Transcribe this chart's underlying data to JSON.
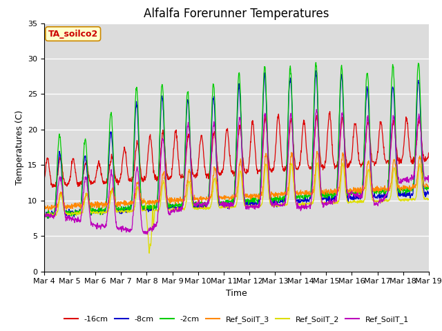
{
  "title": "Alfalfa Forerunner Temperatures",
  "xlabel": "Time",
  "ylabel": "Temperatures (C)",
  "ylim": [
    0,
    35
  ],
  "xlim": [
    0,
    15
  ],
  "annotation_text": "TA_soilco2",
  "annotation_color": "#cc0000",
  "annotation_bg": "#ffffcc",
  "annotation_border": "#cc8800",
  "lines": [
    {
      "label": "-16cm",
      "color": "#dd0000"
    },
    {
      "label": "-8cm",
      "color": "#0000cc"
    },
    {
      "label": "-2cm",
      "color": "#00cc00"
    },
    {
      "label": "Ref_SoilT_3",
      "color": "#ff8800"
    },
    {
      "label": "Ref_SoilT_2",
      "color": "#dddd00"
    },
    {
      "label": "Ref_SoilT_1",
      "color": "#bb00bb"
    }
  ],
  "xtick_labels": [
    "Mar 4",
    "Mar 5",
    "Mar 6",
    "Mar 7",
    "Mar 8",
    "Mar 9",
    "Mar 10",
    "Mar 11",
    "Mar 12",
    "Mar 13",
    "Mar 14",
    "Mar 15",
    "Mar 16",
    "Mar 17",
    "Mar 18",
    "Mar 19"
  ],
  "background_color": "#dcdcdc",
  "grid_color": "#ffffff",
  "title_fontsize": 12,
  "tick_fontsize": 8,
  "label_fontsize": 9
}
